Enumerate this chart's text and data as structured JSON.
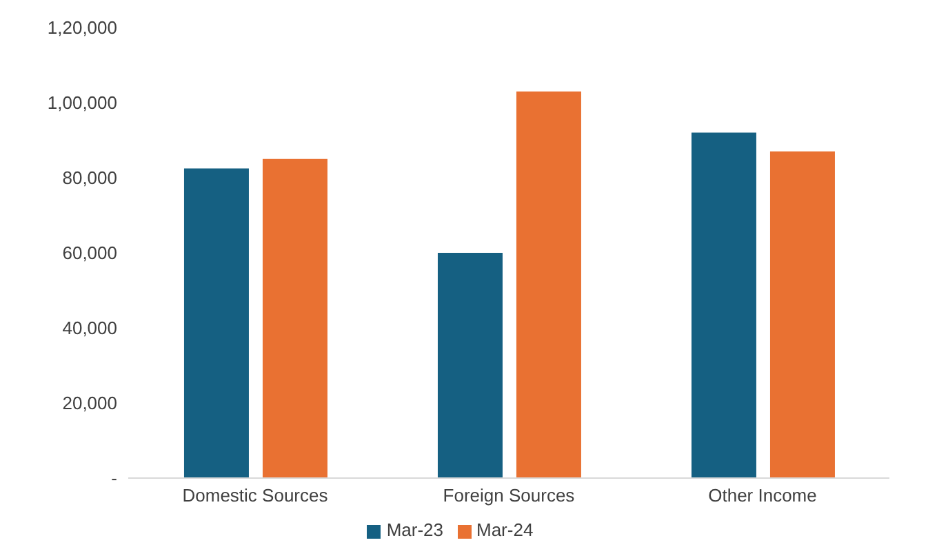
{
  "chart_data": {
    "type": "bar",
    "categories": [
      "Domestic Sources",
      "Foreign Sources",
      "Other Income"
    ],
    "series": [
      {
        "name": "Mar-23",
        "color": "#156082",
        "values": [
          82500,
          60000,
          92000
        ]
      },
      {
        "name": "Mar-24",
        "color": "#e97132",
        "values": [
          85000,
          103000,
          87000
        ]
      }
    ],
    "ylim": [
      0,
      120000
    ],
    "yticks": [
      {
        "value": 0,
        "label": "-"
      },
      {
        "value": 20000,
        "label": "20,000"
      },
      {
        "value": 40000,
        "label": "40,000"
      },
      {
        "value": 60000,
        "label": "60,000"
      },
      {
        "value": 80000,
        "label": "80,000"
      },
      {
        "value": 100000,
        "label": "1,00,000"
      },
      {
        "value": 120000,
        "label": "1,20,000"
      }
    ],
    "legend": "bottom"
  }
}
